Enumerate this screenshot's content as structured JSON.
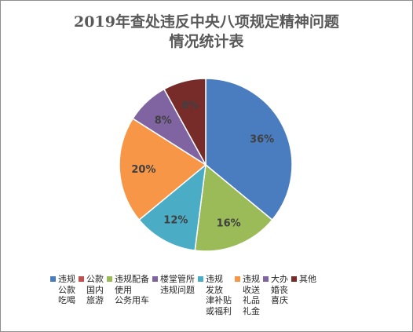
{
  "chart_data": {
    "type": "pie",
    "title_lines": [
      "2019年查处违反中央八项规定精神问题",
      "情况统计表"
    ],
    "legend_position": "bottom",
    "slices": [
      {
        "label": "违规\n公款\n吃喝",
        "value": 36,
        "display": "36%",
        "color": "#4a7dc0"
      },
      {
        "label": "公款\n国内\n旅游",
        "value": 0,
        "display": "",
        "color": "#c0504d"
      },
      {
        "label": "违规配备\n使用\n公务用车",
        "value": 16,
        "display": "16%",
        "color": "#9bbb59"
      },
      {
        "label": "楼堂管所\n违规问题",
        "value": 0,
        "display": "",
        "color": "#8064a2"
      },
      {
        "label": "违规\n发放\n津补贴\n或福利",
        "value": 12,
        "display": "12%",
        "color": "#4bacc6"
      },
      {
        "label": "违规\n收送\n礼品\n礼金",
        "value": 20,
        "display": "20%",
        "color": "#f79646"
      },
      {
        "label": "大办\n婚丧\n喜庆",
        "value": 8,
        "display": "8%",
        "color": "#8064a2"
      },
      {
        "label": "其他",
        "value": 8,
        "display": "8%",
        "color": "#772c2a"
      }
    ]
  }
}
